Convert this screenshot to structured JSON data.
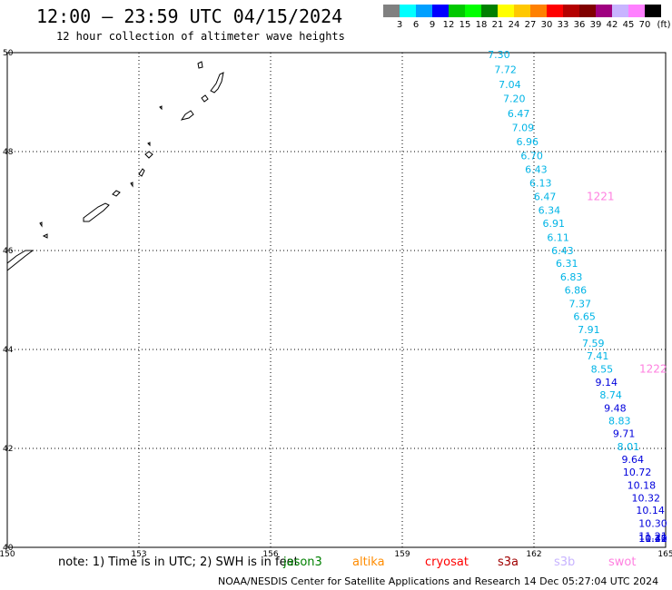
{
  "title": "12:00 – 23:59 UTC 04/15/2024",
  "subtitle": "12 hour collection of altimeter wave heights",
  "legend": {
    "unit": "(ft)",
    "bins": [
      {
        "label": "3",
        "color": "#808080"
      },
      {
        "label": "6",
        "color": "#00ffff"
      },
      {
        "label": "9",
        "color": "#00a0ff"
      },
      {
        "label": "12",
        "color": "#0000ff"
      },
      {
        "label": "15",
        "color": "#00c800"
      },
      {
        "label": "18",
        "color": "#00ff00"
      },
      {
        "label": "21",
        "color": "#008000"
      },
      {
        "label": "24",
        "color": "#ffff00"
      },
      {
        "label": "27",
        "color": "#ffc800"
      },
      {
        "label": "30",
        "color": "#ff8000"
      },
      {
        "label": "33",
        "color": "#ff0000"
      },
      {
        "label": "36",
        "color": "#b40000"
      },
      {
        "label": "39",
        "color": "#800000"
      },
      {
        "label": "42",
        "color": "#a00080"
      },
      {
        "label": "45",
        "color": "#c8b4ff"
      },
      {
        "label": "70",
        "color": "#ff80ff"
      },
      {
        "label": "",
        "color": "#000000"
      }
    ]
  },
  "axes": {
    "lon_ticks": [
      "150",
      "153",
      "156",
      "159",
      "162",
      "165"
    ],
    "lat_ticks": [
      "50",
      "48",
      "46",
      "44",
      "42",
      "40"
    ],
    "lon_range": [
      150,
      165
    ],
    "lat_range": [
      40,
      50
    ]
  },
  "track": {
    "points": [
      {
        "v": "7.30",
        "lon": 161.2,
        "lat": 49.96,
        "c": "#00b4e6"
      },
      {
        "v": "7.72",
        "lon": 161.35,
        "lat": 49.66,
        "c": "#00b4e6"
      },
      {
        "v": "7.04",
        "lon": 161.45,
        "lat": 49.36,
        "c": "#00b4e6"
      },
      {
        "v": "7.20",
        "lon": 161.55,
        "lat": 49.07,
        "c": "#00b4e6"
      },
      {
        "v": "6.47",
        "lon": 161.65,
        "lat": 48.77,
        "c": "#00b4e6"
      },
      {
        "v": "7.09",
        "lon": 161.75,
        "lat": 48.49,
        "c": "#00b4e6"
      },
      {
        "v": "6.96",
        "lon": 161.85,
        "lat": 48.2,
        "c": "#00b4e6"
      },
      {
        "v": "6.70",
        "lon": 161.95,
        "lat": 47.92,
        "c": "#00b4e6"
      },
      {
        "v": "6.43",
        "lon": 162.05,
        "lat": 47.64,
        "c": "#00b4e6"
      },
      {
        "v": "6.13",
        "lon": 162.15,
        "lat": 47.37,
        "c": "#00b4e6"
      },
      {
        "v": "6.47",
        "lon": 162.25,
        "lat": 47.09,
        "c": "#00b4e6"
      },
      {
        "v": "6.34",
        "lon": 162.35,
        "lat": 46.82,
        "c": "#00b4e6"
      },
      {
        "v": "6.91",
        "lon": 162.45,
        "lat": 46.55,
        "c": "#00b4e6"
      },
      {
        "v": "6.11",
        "lon": 162.55,
        "lat": 46.27,
        "c": "#00b4e6"
      },
      {
        "v": "6.43",
        "lon": 162.65,
        "lat": 46.0,
        "c": "#00b4e6"
      },
      {
        "v": "6.31",
        "lon": 162.75,
        "lat": 45.74,
        "c": "#00b4e6"
      },
      {
        "v": "6.83",
        "lon": 162.85,
        "lat": 45.47,
        "c": "#00b4e6"
      },
      {
        "v": "6.86",
        "lon": 162.95,
        "lat": 45.2,
        "c": "#00b4e6"
      },
      {
        "v": "7.37",
        "lon": 163.05,
        "lat": 44.93,
        "c": "#00b4e6"
      },
      {
        "v": "6.65",
        "lon": 163.15,
        "lat": 44.67,
        "c": "#00b4e6"
      },
      {
        "v": "7.91",
        "lon": 163.25,
        "lat": 44.4,
        "c": "#00b4e6"
      },
      {
        "v": "7.59",
        "lon": 163.35,
        "lat": 44.13,
        "c": "#00b4e6"
      },
      {
        "v": "7.41",
        "lon": 163.45,
        "lat": 43.87,
        "c": "#00b4e6"
      },
      {
        "v": "8.55",
        "lon": 163.55,
        "lat": 43.61,
        "c": "#00b4e6"
      },
      {
        "v": "9.14",
        "lon": 163.65,
        "lat": 43.34,
        "c": "#0000dc"
      },
      {
        "v": "8.74",
        "lon": 163.75,
        "lat": 43.08,
        "c": "#00b4e6"
      },
      {
        "v": "9.48",
        "lon": 163.85,
        "lat": 42.82,
        "c": "#0000dc"
      },
      {
        "v": "8.83",
        "lon": 163.95,
        "lat": 42.56,
        "c": "#00b4e6"
      },
      {
        "v": "9.71",
        "lon": 164.05,
        "lat": 42.3,
        "c": "#0000dc"
      },
      {
        "v": "8.01",
        "lon": 164.15,
        "lat": 42.04,
        "c": "#00b4e6"
      },
      {
        "v": "9.64",
        "lon": 164.25,
        "lat": 41.78,
        "c": "#0000dc"
      },
      {
        "v": "10.72",
        "lon": 164.35,
        "lat": 41.52,
        "c": "#0000dc"
      },
      {
        "v": "10.18",
        "lon": 164.45,
        "lat": 41.26,
        "c": "#0000dc"
      },
      {
        "v": "10.32",
        "lon": 164.55,
        "lat": 41.0,
        "c": "#0000dc"
      },
      {
        "v": "10.14",
        "lon": 164.65,
        "lat": 40.75,
        "c": "#0000dc"
      },
      {
        "v": "10.30",
        "lon": 164.75,
        "lat": 40.49,
        "c": "#0000dc"
      },
      {
        "v": "11.21",
        "lon": 164.85,
        "lat": 40.23,
        "c": "#0000dc"
      },
      {
        "v": "11.72",
        "lon": 164.95,
        "lat": 39.98,
        "c": "#0000dc"
      },
      {
        "v": "11.30",
        "lon": 165.05,
        "lat": 39.73,
        "c": "#0000dc"
      },
      {
        "v": "10.41",
        "lon": 165.15,
        "lat": 39.47,
        "c": "#0000dc"
      },
      {
        "v": "10.23",
        "lon": 165.25,
        "lat": 39.22,
        "c": "#0000dc"
      }
    ],
    "pass_labels": [
      {
        "text": "1221",
        "lon": 163.2,
        "lat": 47.09,
        "c": "#ff80e0"
      },
      {
        "text": "1222",
        "lon": 164.4,
        "lat": 43.61,
        "c": "#ff80e0"
      }
    ]
  },
  "note": "note: 1) Time is in UTC; 2) SWH is in feet",
  "satellites": [
    {
      "name": "jason3",
      "color": "#008000"
    },
    {
      "name": "altika",
      "color": "#ff8c00"
    },
    {
      "name": "cryosat",
      "color": "#ff0000"
    },
    {
      "name": "s3a",
      "color": "#a00000"
    },
    {
      "name": "s3b",
      "color": "#c8b4ff"
    },
    {
      "name": "swot",
      "color": "#ff80e0"
    }
  ],
  "credit": "NOAA/NESDIS Center for Satellite Applications and Research   14 Dec 05:27:04 UTC 2024"
}
